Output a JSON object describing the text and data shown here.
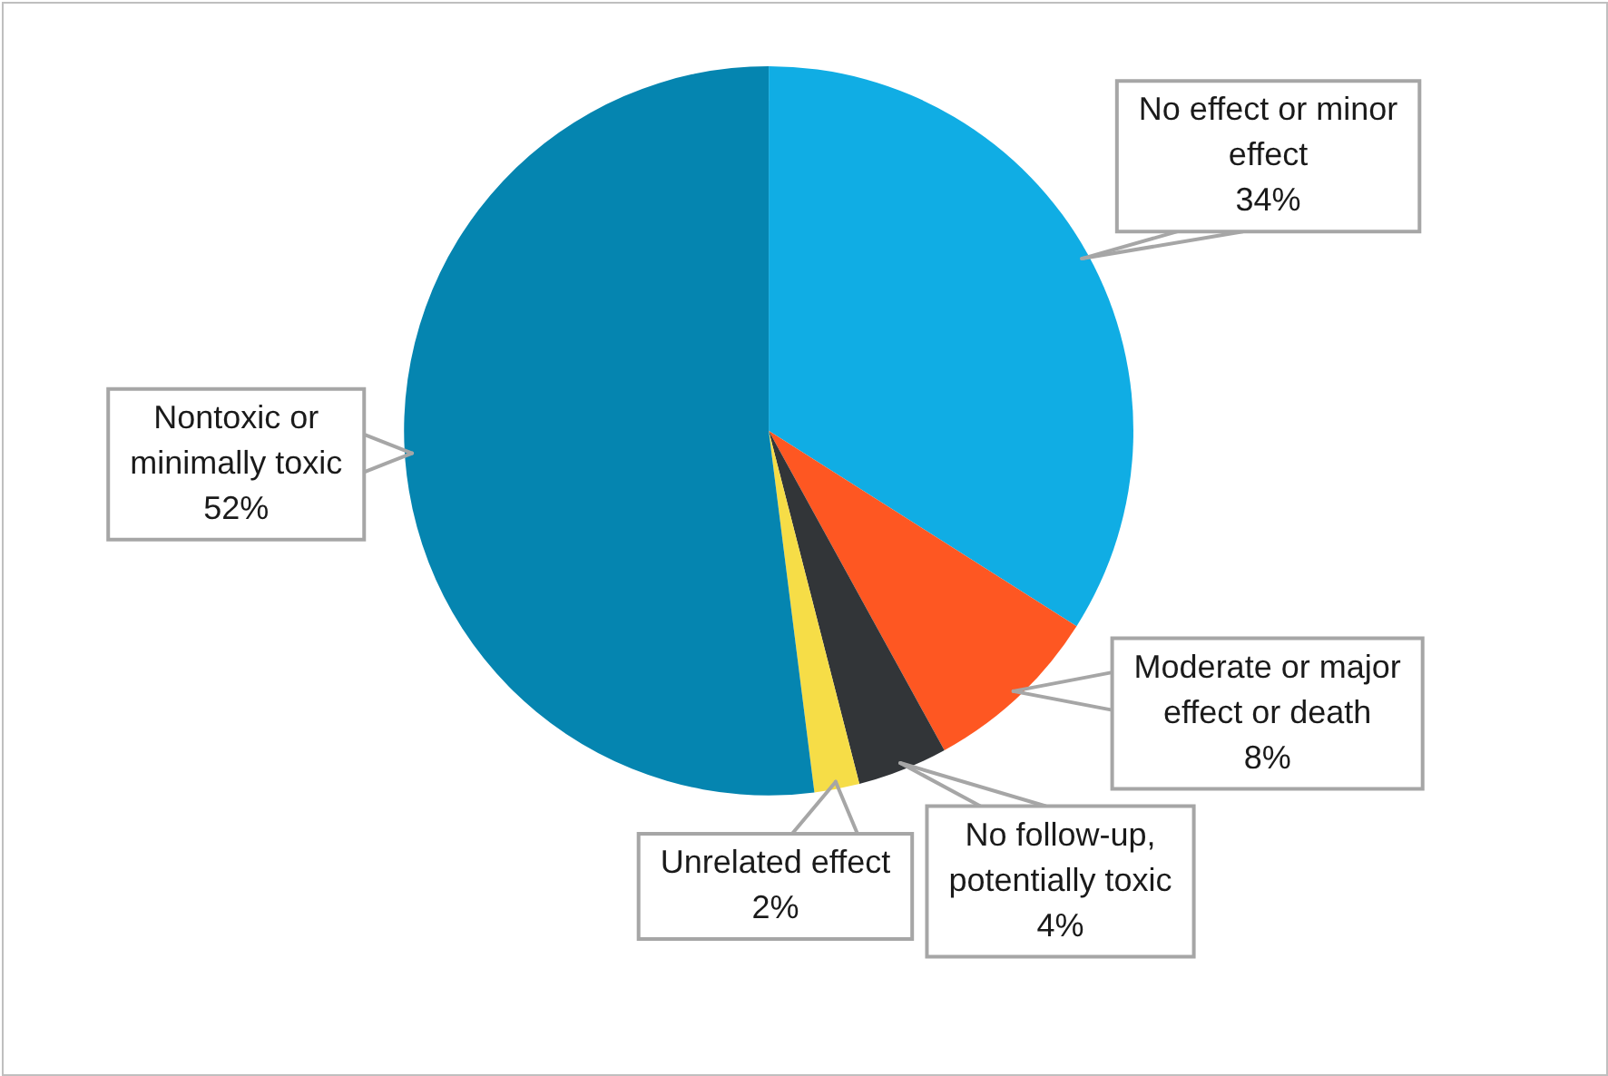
{
  "chart_data": {
    "type": "pie",
    "categories": [
      "No effect or minor effect",
      "Moderate or major effect or death",
      "No follow-up, potentially toxic",
      "Unrelated effect",
      "Nontoxic or minimally toxic"
    ],
    "values": [
      34,
      8,
      4,
      2,
      52
    ],
    "colors": [
      "#10ade4",
      "#fe5722",
      "#323538",
      "#f6dd47",
      "#0585b0"
    ],
    "value_labels": [
      "34%",
      "8%",
      "4%",
      "2%",
      "52%"
    ]
  }
}
